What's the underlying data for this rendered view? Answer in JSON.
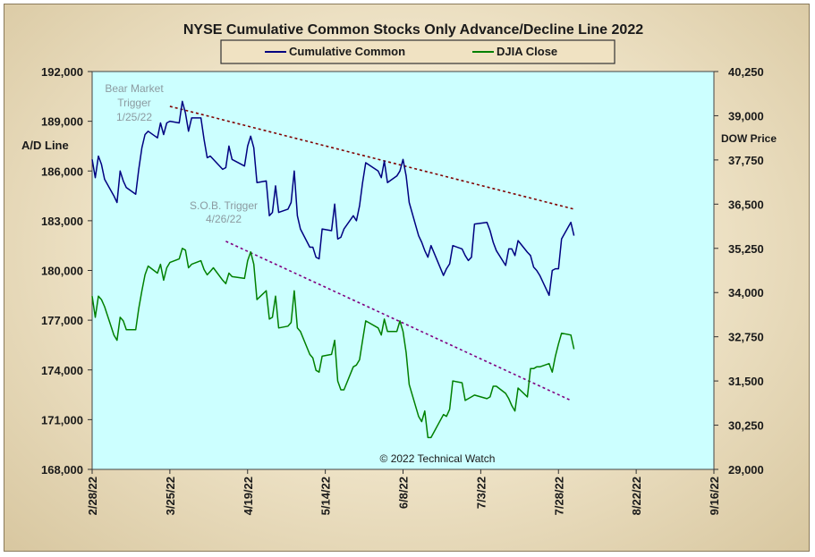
{
  "chart_data": {
    "type": "line",
    "title": "NYSE Cumulative  Common Stocks Only Advance/Decline  Line 2022",
    "legend": {
      "placement": "top-center",
      "entries": [
        {
          "name": "Cumulative Common",
          "color": "#000080"
        },
        {
          "name": "DJIA Close",
          "color": "#008000"
        }
      ]
    },
    "ylabel_left": "A/D Line",
    "ylabel_right": "DOW  Price",
    "ylim_left": [
      168000,
      192000
    ],
    "ylim_right": [
      29000,
      40250
    ],
    "yticks_left": [
      "168,000",
      "171,000",
      "174,000",
      "177,000",
      "180,000",
      "183,000",
      "186,000",
      "189,000",
      "192,000"
    ],
    "yticks_right": [
      "29,000",
      "30,250",
      "31,500",
      "32,750",
      "34,000",
      "35,250",
      "36,500",
      "37,750",
      "39,000",
      "40,250"
    ],
    "xticks": [
      "2/28/22",
      "3/25/22",
      "4/19/22",
      "5/14/22",
      "6/8/22",
      "7/3/22",
      "7/28/22",
      "8/22/22",
      "9/16/22"
    ],
    "xlim": [
      "2022-02-28",
      "2022-09-16"
    ],
    "grid": false,
    "background": "#ccffff",
    "credit": "© 2022 Technical Watch",
    "annotations": [
      {
        "lines": [
          "Bear Market",
          "Trigger",
          "1/25/22"
        ]
      },
      {
        "lines": [
          "S.O.B. Trigger",
          "4/26/22"
        ]
      }
    ],
    "trendlines": [
      {
        "axis": "left",
        "from": [
          "2022-03-25",
          189900
        ],
        "to": [
          "2022-08-02",
          183700
        ],
        "color": "#800000"
      },
      {
        "axis": "right",
        "from": [
          "2022-04-12",
          35450
        ],
        "to": [
          "2022-08-01",
          30950
        ],
        "color": "#800080"
      }
    ],
    "series": [
      {
        "name": "Cumulative Common",
        "axis": "left",
        "color": "#000080",
        "points": [
          [
            "2022-02-28",
            186700
          ],
          [
            "2022-03-01",
            185600
          ],
          [
            "2022-03-02",
            186900
          ],
          [
            "2022-03-03",
            186400
          ],
          [
            "2022-03-04",
            185500
          ],
          [
            "2022-03-07",
            184500
          ],
          [
            "2022-03-08",
            184100
          ],
          [
            "2022-03-09",
            186000
          ],
          [
            "2022-03-10",
            185400
          ],
          [
            "2022-03-11",
            185000
          ],
          [
            "2022-03-14",
            184600
          ],
          [
            "2022-03-15",
            186100
          ],
          [
            "2022-03-16",
            187400
          ],
          [
            "2022-03-17",
            188200
          ],
          [
            "2022-03-18",
            188400
          ],
          [
            "2022-03-21",
            188000
          ],
          [
            "2022-03-22",
            188900
          ],
          [
            "2022-03-23",
            188200
          ],
          [
            "2022-03-24",
            188900
          ],
          [
            "2022-03-25",
            189000
          ],
          [
            "2022-03-28",
            188900
          ],
          [
            "2022-03-29",
            190200
          ],
          [
            "2022-03-30",
            189500
          ],
          [
            "2022-03-31",
            188400
          ],
          [
            "2022-04-01",
            189200
          ],
          [
            "2022-04-04",
            189200
          ],
          [
            "2022-04-05",
            187900
          ],
          [
            "2022-04-06",
            186800
          ],
          [
            "2022-04-07",
            186900
          ],
          [
            "2022-04-08",
            186700
          ],
          [
            "2022-04-11",
            186100
          ],
          [
            "2022-04-12",
            186200
          ],
          [
            "2022-04-13",
            187500
          ],
          [
            "2022-04-14",
            186700
          ],
          [
            "2022-04-18",
            186300
          ],
          [
            "2022-04-19",
            187500
          ],
          [
            "2022-04-20",
            188100
          ],
          [
            "2022-04-21",
            187400
          ],
          [
            "2022-04-22",
            185300
          ],
          [
            "2022-04-25",
            185400
          ],
          [
            "2022-04-26",
            183300
          ],
          [
            "2022-04-27",
            183500
          ],
          [
            "2022-04-28",
            185100
          ],
          [
            "2022-04-29",
            183500
          ],
          [
            "2022-05-02",
            183700
          ],
          [
            "2022-05-03",
            184100
          ],
          [
            "2022-05-04",
            186000
          ],
          [
            "2022-05-05",
            183300
          ],
          [
            "2022-05-06",
            182500
          ],
          [
            "2022-05-09",
            181400
          ],
          [
            "2022-05-10",
            181400
          ],
          [
            "2022-05-11",
            180800
          ],
          [
            "2022-05-12",
            180700
          ],
          [
            "2022-05-13",
            182500
          ],
          [
            "2022-05-16",
            182400
          ],
          [
            "2022-05-17",
            184000
          ],
          [
            "2022-05-18",
            181900
          ],
          [
            "2022-05-19",
            182000
          ],
          [
            "2022-05-20",
            182500
          ],
          [
            "2022-05-23",
            183300
          ],
          [
            "2022-05-24",
            183000
          ],
          [
            "2022-05-25",
            183900
          ],
          [
            "2022-05-26",
            185300
          ],
          [
            "2022-05-27",
            186500
          ],
          [
            "2022-05-31",
            186000
          ],
          [
            "2022-06-01",
            185600
          ],
          [
            "2022-06-02",
            186600
          ],
          [
            "2022-06-03",
            185300
          ],
          [
            "2022-06-06",
            185700
          ],
          [
            "2022-06-07",
            186000
          ],
          [
            "2022-06-08",
            186700
          ],
          [
            "2022-06-09",
            185700
          ],
          [
            "2022-06-10",
            184100
          ],
          [
            "2022-06-13",
            182100
          ],
          [
            "2022-06-14",
            181700
          ],
          [
            "2022-06-15",
            181200
          ],
          [
            "2022-06-16",
            180800
          ],
          [
            "2022-06-17",
            181500
          ],
          [
            "2022-06-21",
            179700
          ],
          [
            "2022-06-22",
            180100
          ],
          [
            "2022-06-23",
            180400
          ],
          [
            "2022-06-24",
            181500
          ],
          [
            "2022-06-27",
            181300
          ],
          [
            "2022-06-28",
            180900
          ],
          [
            "2022-06-29",
            180600
          ],
          [
            "2022-06-30",
            180800
          ],
          [
            "2022-07-01",
            182800
          ],
          [
            "2022-07-05",
            182900
          ],
          [
            "2022-07-06",
            182400
          ],
          [
            "2022-07-07",
            181700
          ],
          [
            "2022-07-08",
            181200
          ],
          [
            "2022-07-11",
            180300
          ],
          [
            "2022-07-12",
            181300
          ],
          [
            "2022-07-13",
            181300
          ],
          [
            "2022-07-14",
            180900
          ],
          [
            "2022-07-15",
            181800
          ],
          [
            "2022-07-18",
            181100
          ],
          [
            "2022-07-19",
            180900
          ],
          [
            "2022-07-20",
            180200
          ],
          [
            "2022-07-21",
            180000
          ],
          [
            "2022-07-22",
            179700
          ],
          [
            "2022-07-25",
            178500
          ],
          [
            "2022-07-26",
            180000
          ],
          [
            "2022-07-27",
            180100
          ],
          [
            "2022-07-28",
            180100
          ],
          [
            "2022-07-29",
            181900
          ],
          [
            "2022-08-01",
            182900
          ],
          [
            "2022-08-02",
            182100
          ]
        ]
      },
      {
        "name": "DJIA Close",
        "axis": "right",
        "color": "#008000",
        "points": [
          [
            "2022-02-28",
            33900
          ],
          [
            "2022-03-01",
            33300
          ],
          [
            "2022-03-02",
            33900
          ],
          [
            "2022-03-03",
            33800
          ],
          [
            "2022-03-04",
            33600
          ],
          [
            "2022-03-07",
            32800
          ],
          [
            "2022-03-08",
            32650
          ],
          [
            "2022-03-09",
            33300
          ],
          [
            "2022-03-10",
            33200
          ],
          [
            "2022-03-11",
            32950
          ],
          [
            "2022-03-14",
            32950
          ],
          [
            "2022-03-15",
            33550
          ],
          [
            "2022-03-16",
            34050
          ],
          [
            "2022-03-17",
            34500
          ],
          [
            "2022-03-18",
            34750
          ],
          [
            "2022-03-21",
            34550
          ],
          [
            "2022-03-22",
            34800
          ],
          [
            "2022-03-23",
            34350
          ],
          [
            "2022-03-24",
            34700
          ],
          [
            "2022-03-25",
            34850
          ],
          [
            "2022-03-28",
            34950
          ],
          [
            "2022-03-29",
            35250
          ],
          [
            "2022-03-30",
            35200
          ],
          [
            "2022-03-31",
            34700
          ],
          [
            "2022-04-01",
            34800
          ],
          [
            "2022-04-04",
            34900
          ],
          [
            "2022-04-05",
            34650
          ],
          [
            "2022-04-06",
            34500
          ],
          [
            "2022-04-07",
            34600
          ],
          [
            "2022-04-08",
            34700
          ],
          [
            "2022-04-11",
            34350
          ],
          [
            "2022-04-12",
            34250
          ],
          [
            "2022-04-13",
            34550
          ],
          [
            "2022-04-14",
            34450
          ],
          [
            "2022-04-18",
            34400
          ],
          [
            "2022-04-19",
            34900
          ],
          [
            "2022-04-20",
            35150
          ],
          [
            "2022-04-21",
            34800
          ],
          [
            "2022-04-22",
            33800
          ],
          [
            "2022-04-25",
            34050
          ],
          [
            "2022-04-26",
            33250
          ],
          [
            "2022-04-27",
            33300
          ],
          [
            "2022-04-28",
            33900
          ],
          [
            "2022-04-29",
            33000
          ],
          [
            "2022-05-02",
            33050
          ],
          [
            "2022-05-03",
            33150
          ],
          [
            "2022-05-04",
            34050
          ],
          [
            "2022-05-05",
            33000
          ],
          [
            "2022-05-06",
            32900
          ],
          [
            "2022-05-09",
            32250
          ],
          [
            "2022-05-10",
            32150
          ],
          [
            "2022-05-11",
            31800
          ],
          [
            "2022-05-12",
            31750
          ],
          [
            "2022-05-13",
            32200
          ],
          [
            "2022-05-16",
            32250
          ],
          [
            "2022-05-17",
            32650
          ],
          [
            "2022-05-18",
            31500
          ],
          [
            "2022-05-19",
            31250
          ],
          [
            "2022-05-20",
            31250
          ],
          [
            "2022-05-23",
            31900
          ],
          [
            "2022-05-24",
            31950
          ],
          [
            "2022-05-25",
            32100
          ],
          [
            "2022-05-26",
            32650
          ],
          [
            "2022-05-27",
            33200
          ],
          [
            "2022-05-31",
            33000
          ],
          [
            "2022-06-01",
            32800
          ],
          [
            "2022-06-02",
            33250
          ],
          [
            "2022-06-03",
            32900
          ],
          [
            "2022-06-06",
            32900
          ],
          [
            "2022-06-07",
            33200
          ],
          [
            "2022-06-08",
            32900
          ],
          [
            "2022-06-09",
            32300
          ],
          [
            "2022-06-10",
            31400
          ],
          [
            "2022-06-13",
            30500
          ],
          [
            "2022-06-14",
            30350
          ],
          [
            "2022-06-15",
            30650
          ],
          [
            "2022-06-16",
            29900
          ],
          [
            "2022-06-17",
            29900
          ],
          [
            "2022-06-21",
            30550
          ],
          [
            "2022-06-22",
            30500
          ],
          [
            "2022-06-23",
            30700
          ],
          [
            "2022-06-24",
            31500
          ],
          [
            "2022-06-27",
            31450
          ],
          [
            "2022-06-28",
            30950
          ],
          [
            "2022-06-29",
            31000
          ],
          [
            "2022-06-30",
            31050
          ],
          [
            "2022-07-01",
            31100
          ],
          [
            "2022-07-05",
            31000
          ],
          [
            "2022-07-06",
            31050
          ],
          [
            "2022-07-07",
            31350
          ],
          [
            "2022-07-08",
            31350
          ],
          [
            "2022-07-11",
            31150
          ],
          [
            "2022-07-12",
            31000
          ],
          [
            "2022-07-13",
            30800
          ],
          [
            "2022-07-14",
            30650
          ],
          [
            "2022-07-15",
            31300
          ],
          [
            "2022-07-18",
            31050
          ],
          [
            "2022-07-19",
            31850
          ],
          [
            "2022-07-20",
            31850
          ],
          [
            "2022-07-21",
            31900
          ],
          [
            "2022-07-22",
            31900
          ],
          [
            "2022-07-25",
            31990
          ],
          [
            "2022-07-26",
            31750
          ],
          [
            "2022-07-27",
            32200
          ],
          [
            "2022-07-28",
            32550
          ],
          [
            "2022-07-29",
            32850
          ],
          [
            "2022-08-01",
            32800
          ],
          [
            "2022-08-02",
            32400
          ]
        ]
      }
    ]
  }
}
